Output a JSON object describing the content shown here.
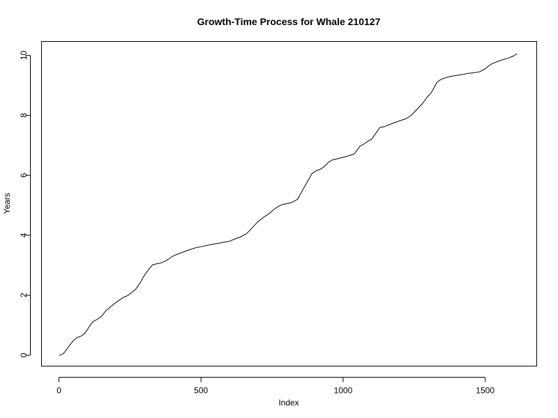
{
  "chart_data": {
    "type": "line",
    "title": "Growth-Time Process for Whale 210127",
    "xlabel": "Index",
    "ylabel": "Years",
    "xlim": [
      -60,
      1680
    ],
    "ylim": [
      -0.35,
      10.45
    ],
    "x_ticks": [
      0,
      500,
      1000,
      1500
    ],
    "x_tick_labels": [
      "0",
      "500",
      "1000",
      "1500"
    ],
    "y_ticks": [
      0,
      2,
      4,
      6,
      8,
      10
    ],
    "y_tick_labels": [
      "0",
      "2",
      "4",
      "6",
      "8",
      "10"
    ],
    "grid": false,
    "legend": "none",
    "series": [
      {
        "x": [
          1,
          10,
          20,
          35,
          50,
          65,
          75,
          90,
          100,
          110,
          118,
          125,
          135,
          150,
          165,
          180,
          195,
          210,
          225,
          240,
          255,
          270,
          285,
          300,
          315,
          330,
          345,
          360,
          370,
          385,
          400,
          420,
          440,
          460,
          480,
          500,
          520,
          540,
          560,
          580,
          600,
          620,
          640,
          660,
          680,
          700,
          720,
          740,
          755,
          770,
          785,
          800,
          820,
          840,
          860,
          875,
          890,
          905,
          920,
          935,
          950,
          965,
          980,
          1000,
          1020,
          1040,
          1060,
          1075,
          1085,
          1100,
          1115,
          1130,
          1145,
          1160,
          1180,
          1200,
          1220,
          1240,
          1260,
          1280,
          1295,
          1310,
          1330,
          1345,
          1360,
          1380,
          1400,
          1420,
          1440,
          1460,
          1480,
          1500,
          1520,
          1540,
          1560,
          1580,
          1600,
          1612
        ],
        "y": [
          0.0,
          0.02,
          0.1,
          0.3,
          0.48,
          0.6,
          0.62,
          0.72,
          0.85,
          1.0,
          1.1,
          1.15,
          1.2,
          1.3,
          1.48,
          1.6,
          1.72,
          1.82,
          1.92,
          1.98,
          2.08,
          2.2,
          2.4,
          2.65,
          2.85,
          3.02,
          3.05,
          3.08,
          3.12,
          3.2,
          3.3,
          3.38,
          3.45,
          3.52,
          3.58,
          3.62,
          3.66,
          3.7,
          3.73,
          3.77,
          3.8,
          3.88,
          3.95,
          4.05,
          4.25,
          4.45,
          4.6,
          4.72,
          4.85,
          4.95,
          5.02,
          5.05,
          5.1,
          5.2,
          5.55,
          5.8,
          6.05,
          6.15,
          6.2,
          6.3,
          6.45,
          6.52,
          6.55,
          6.6,
          6.65,
          6.72,
          6.98,
          7.05,
          7.12,
          7.2,
          7.4,
          7.6,
          7.62,
          7.68,
          7.75,
          7.82,
          7.88,
          8.0,
          8.2,
          8.4,
          8.6,
          8.75,
          9.1,
          9.2,
          9.25,
          9.3,
          9.33,
          9.36,
          9.4,
          9.42,
          9.45,
          9.55,
          9.7,
          9.78,
          9.85,
          9.9,
          9.98,
          10.05
        ]
      }
    ]
  }
}
